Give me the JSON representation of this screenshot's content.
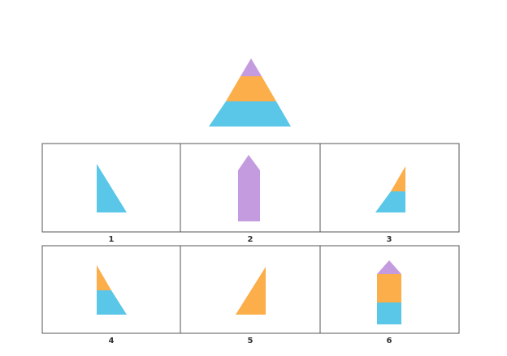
{
  "colors": {
    "purple": "#c59be0",
    "orange": "#fbae4a",
    "blue": "#5ac6e8",
    "border": "#555555",
    "label": "#333333"
  },
  "target_figure": {
    "bands_top_to_bottom": [
      "purple",
      "orange",
      "blue"
    ]
  },
  "options": [
    {
      "label": "1",
      "pieces": [
        "blue"
      ]
    },
    {
      "label": "2",
      "pieces": [
        "purple"
      ]
    },
    {
      "label": "3",
      "pieces": [
        "orange",
        "blue"
      ]
    },
    {
      "label": "4",
      "pieces": [
        "orange",
        "blue"
      ]
    },
    {
      "label": "5",
      "pieces": [
        "orange"
      ]
    },
    {
      "label": "6",
      "pieces": [
        "purple",
        "orange",
        "blue"
      ]
    }
  ]
}
